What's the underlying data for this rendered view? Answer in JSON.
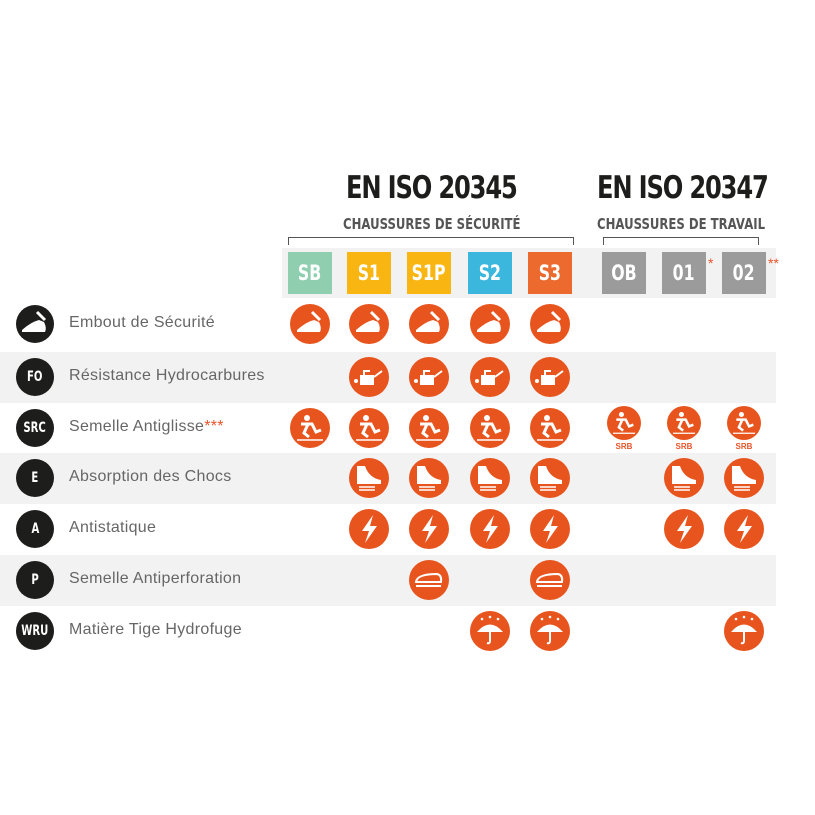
{
  "standards": [
    {
      "title": "EN ISO 20345",
      "subtitle": "CHAUSSURES DE SÉCURITÉ"
    },
    {
      "title": "EN ISO 20347",
      "subtitle": "CHAUSSURES DE TRAVAIL"
    }
  ],
  "categories": [
    {
      "label": "SB",
      "color": "#8fcfb0",
      "star": ""
    },
    {
      "label": "S1",
      "color": "#f9b612",
      "star": ""
    },
    {
      "label": "S1P",
      "color": "#f9b612",
      "star": ""
    },
    {
      "label": "S2",
      "color": "#3bb6dc",
      "star": ""
    },
    {
      "label": "S3",
      "color": "#ec6a2e",
      "star": ""
    },
    {
      "label": "OB",
      "color": "#9b9b9b",
      "star": ""
    },
    {
      "label": "01",
      "color": "#9b9b9b",
      "star": "*"
    },
    {
      "label": "02",
      "color": "#9b9b9b",
      "star": "**"
    }
  ],
  "icon_color": "#e8541e",
  "srb_label": "SRB",
  "features": [
    {
      "code": "",
      "icon": "toe-cap-icon",
      "label": "Embout de Sécurité",
      "note": "",
      "applies": [
        1,
        1,
        1,
        1,
        1,
        0,
        0,
        0
      ]
    },
    {
      "code": "FO",
      "icon": "oil-can-icon",
      "label": "Résistance Hydrocarbures",
      "note": "",
      "applies": [
        0,
        1,
        1,
        1,
        1,
        0,
        0,
        0
      ]
    },
    {
      "code": "SRC",
      "icon": "slip-icon",
      "label": "Semelle Antiglisse",
      "note": "***",
      "applies": [
        1,
        1,
        1,
        1,
        1,
        1,
        1,
        1
      ]
    },
    {
      "code": "E",
      "icon": "heel-shock-icon",
      "label": "Absorption des Chocs",
      "note": "",
      "applies": [
        0,
        1,
        1,
        1,
        1,
        0,
        1,
        1
      ]
    },
    {
      "code": "A",
      "icon": "lightning-icon",
      "label": "Antistatique",
      "note": "",
      "applies": [
        0,
        1,
        1,
        1,
        1,
        0,
        1,
        1
      ]
    },
    {
      "code": "P",
      "icon": "sole-plate-icon",
      "label": "Semelle Antiperforation",
      "note": "",
      "applies": [
        0,
        0,
        1,
        0,
        1,
        0,
        0,
        0
      ]
    },
    {
      "code": "WRU",
      "icon": "umbrella-icon",
      "label": "Matière Tige Hydrofuge",
      "note": "",
      "applies": [
        0,
        0,
        0,
        1,
        1,
        0,
        0,
        1
      ]
    }
  ]
}
